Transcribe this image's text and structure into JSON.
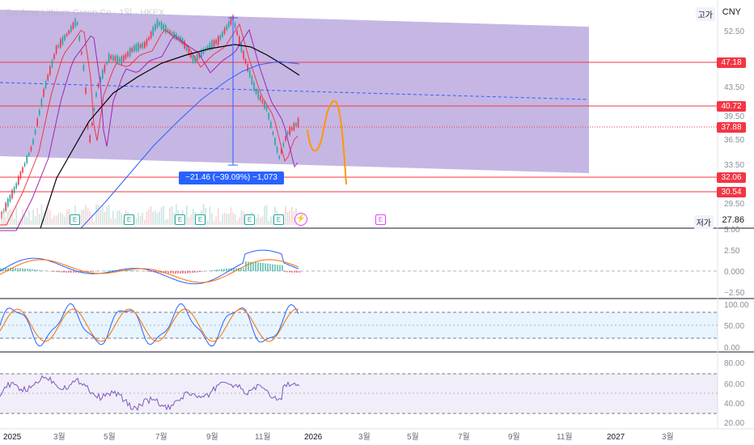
{
  "header": {
    "title": "Ganfeng Lithium Group Co · 1일 · HKEX",
    "currency": "CNY",
    "high_label": "고가",
    "low_label": "저가",
    "low_value": "27.86"
  },
  "price_axis": [
    "52.50",
    "47.18",
    "43.50",
    "40.72",
    "39.50",
    "37.88",
    "36.50",
    "33.50",
    "32.06",
    "30.54",
    "29.50"
  ],
  "price_tags": [
    {
      "label": "47.18",
      "style": "solid"
    },
    {
      "label": "40.72",
      "style": "solid"
    },
    {
      "label": "37.88",
      "style": "solid"
    },
    {
      "label": "32.06",
      "style": "solid"
    },
    {
      "label": "30.54",
      "style": "solid"
    }
  ],
  "measure_label": "−21.46 (−39.09%) −1,073",
  "macd_axis": [
    "5.00",
    "2.50",
    "0.000",
    "−2.50"
  ],
  "stoch_axis": [
    "100.00",
    "50.00",
    "0.00"
  ],
  "rsi_axis": [
    "80.00",
    "60.00",
    "40.00",
    "20.00"
  ],
  "time_axis": [
    "2025",
    "3월",
    "5월",
    "7월",
    "9월",
    "11월",
    "2026",
    "3월",
    "5월",
    "7월",
    "9월",
    "11월",
    "2027",
    "3월"
  ],
  "earnings_badges": [
    "E",
    "E",
    "E",
    "E",
    "E",
    "E",
    "E"
  ],
  "colors": {
    "channel": "#b39ddb",
    "red_line": "#f23645",
    "orange": "#ff9800",
    "blue": "#2962ff",
    "ma_black": "#000000",
    "macd_blue": "#2962ff",
    "macd_orange": "#ff6d00",
    "rsi": "#7e57c2"
  }
}
